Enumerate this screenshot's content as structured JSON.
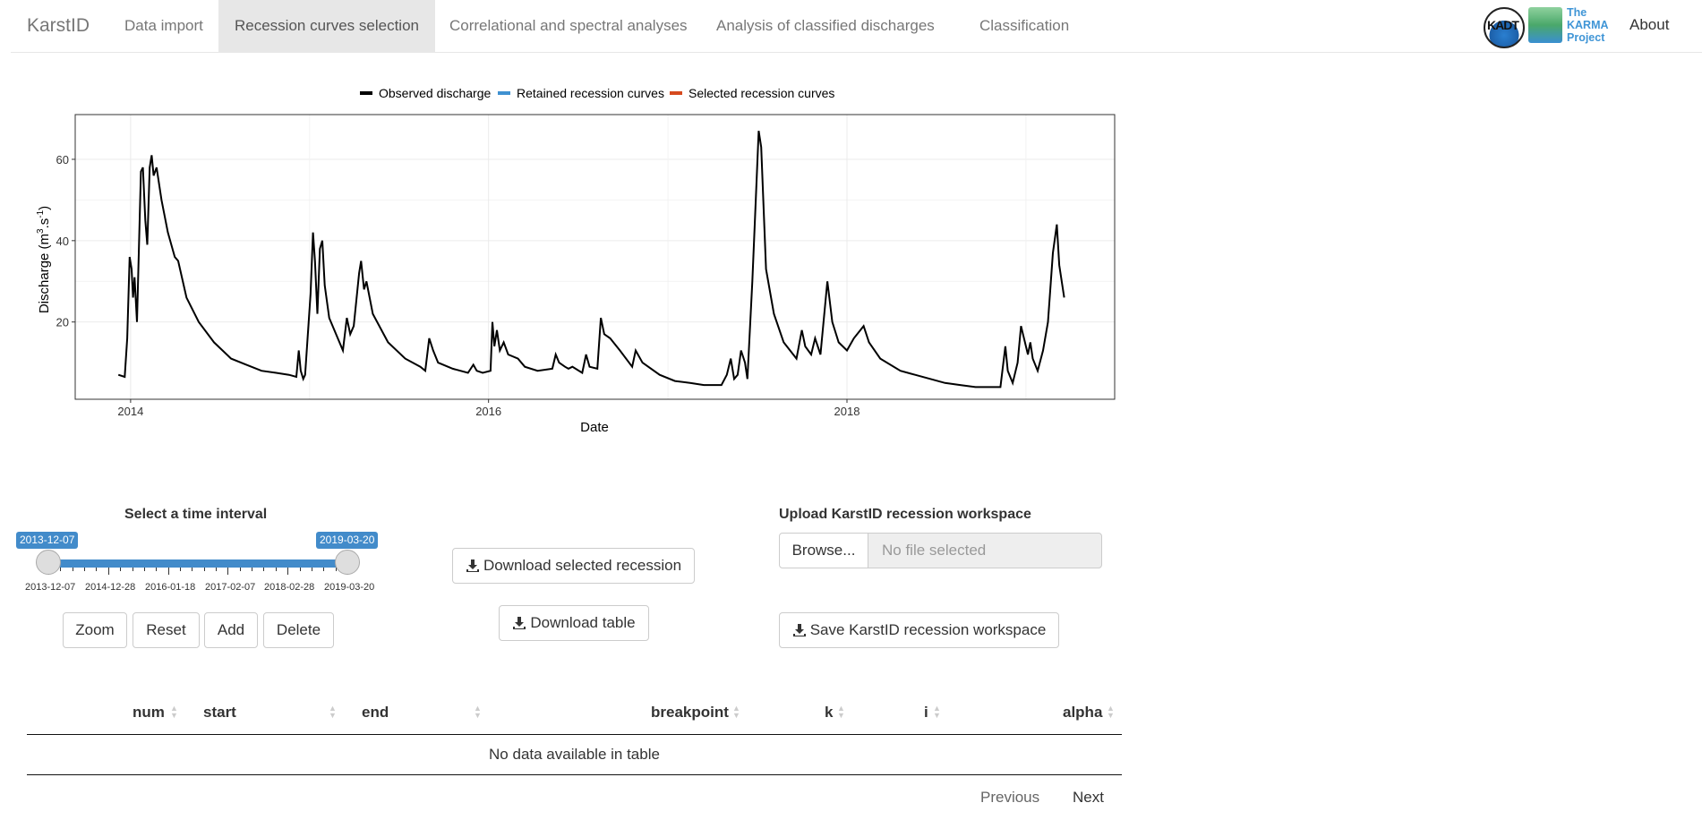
{
  "nav": {
    "brand": "KarstID",
    "items": [
      {
        "label": "Data import"
      },
      {
        "label": "Recession curves selection"
      },
      {
        "label": "Correlational and spectral analyses"
      },
      {
        "label": "Analysis of classified discharges"
      },
      {
        "label": "Classification"
      }
    ],
    "logos": {
      "kadt": "KADT",
      "karma": "The KARMA Project"
    },
    "about": "About"
  },
  "chart_data": {
    "type": "line",
    "title": "",
    "xlabel": "Date",
    "ylabel": "Discharge (m³.s⁻¹)",
    "ylabel_parts": {
      "base": "Discharge (m",
      "sup1": "3",
      "mid": ".s",
      "sup2": "-1",
      "end": ")"
    },
    "xlim": [
      "2013-09-10",
      "2019-07-01"
    ],
    "ylim": [
      1,
      71
    ],
    "x_ticks": [
      "2014",
      "2016",
      "2018"
    ],
    "y_ticks": [
      20,
      40,
      60
    ],
    "grid": true,
    "legend_position": "top",
    "legend": [
      {
        "name": "Observed discharge",
        "color": "#000000"
      },
      {
        "name": "Retained recession curves",
        "color": "#3f91d1"
      },
      {
        "name": "Selected recession curves",
        "color": "#d64a1e"
      }
    ],
    "series": [
      {
        "name": "Observed discharge",
        "color": "#000000",
        "points": [
          [
            "2013-12-07",
            7
          ],
          [
            "2013-12-20",
            6.5
          ],
          [
            "2013-12-25",
            16
          ],
          [
            "2013-12-30",
            36
          ],
          [
            "2014-01-03",
            33
          ],
          [
            "2014-01-06",
            26
          ],
          [
            "2014-01-09",
            31
          ],
          [
            "2014-01-14",
            20
          ],
          [
            "2014-01-22",
            57
          ],
          [
            "2014-01-26",
            58
          ],
          [
            "2014-01-31",
            45
          ],
          [
            "2014-02-04",
            39
          ],
          [
            "2014-02-09",
            58
          ],
          [
            "2014-02-13",
            61
          ],
          [
            "2014-02-17",
            56
          ],
          [
            "2014-02-23",
            58
          ],
          [
            "2014-03-05",
            50
          ],
          [
            "2014-03-18",
            42
          ],
          [
            "2014-04-01",
            36
          ],
          [
            "2014-04-08",
            35
          ],
          [
            "2014-04-25",
            26
          ],
          [
            "2014-05-20",
            20
          ],
          [
            "2014-06-20",
            15
          ],
          [
            "2014-07-25",
            11
          ],
          [
            "2014-08-25",
            9.5
          ],
          [
            "2014-09-25",
            8
          ],
          [
            "2014-10-25",
            7.5
          ],
          [
            "2014-11-20",
            7
          ],
          [
            "2014-12-05",
            6.5
          ],
          [
            "2014-12-10",
            13
          ],
          [
            "2014-12-14",
            8
          ],
          [
            "2014-12-19",
            6
          ],
          [
            "2014-12-23",
            7
          ],
          [
            "2015-01-03",
            27
          ],
          [
            "2015-01-08",
            42
          ],
          [
            "2015-01-12",
            35
          ],
          [
            "2015-01-17",
            22
          ],
          [
            "2015-01-22",
            38
          ],
          [
            "2015-01-27",
            40
          ],
          [
            "2015-02-01",
            29
          ],
          [
            "2015-02-10",
            21
          ],
          [
            "2015-03-10",
            13
          ],
          [
            "2015-03-18",
            21
          ],
          [
            "2015-03-25",
            17
          ],
          [
            "2015-04-01",
            19
          ],
          [
            "2015-04-12",
            32
          ],
          [
            "2015-04-16",
            35
          ],
          [
            "2015-04-22",
            28
          ],
          [
            "2015-04-27",
            30
          ],
          [
            "2015-05-10",
            22
          ],
          [
            "2015-06-10",
            15
          ],
          [
            "2015-07-15",
            11
          ],
          [
            "2015-08-15",
            9
          ],
          [
            "2015-08-25",
            8
          ],
          [
            "2015-09-02",
            16
          ],
          [
            "2015-09-10",
            13
          ],
          [
            "2015-09-20",
            10
          ],
          [
            "2015-10-20",
            8.5
          ],
          [
            "2015-11-20",
            7.5
          ],
          [
            "2015-12-01",
            9.5
          ],
          [
            "2015-12-08",
            8
          ],
          [
            "2015-12-20",
            7.5
          ],
          [
            "2016-01-05",
            8
          ],
          [
            "2016-01-09",
            20
          ],
          [
            "2016-01-13",
            14
          ],
          [
            "2016-01-18",
            18
          ],
          [
            "2016-01-24",
            13
          ],
          [
            "2016-02-01",
            15
          ],
          [
            "2016-02-10",
            12
          ],
          [
            "2016-03-01",
            11
          ],
          [
            "2016-03-15",
            9
          ],
          [
            "2016-04-10",
            8
          ],
          [
            "2016-05-10",
            8.5
          ],
          [
            "2016-05-17",
            12
          ],
          [
            "2016-05-24",
            10
          ],
          [
            "2016-06-05",
            9
          ],
          [
            "2016-06-12",
            8.5
          ],
          [
            "2016-06-20",
            9
          ],
          [
            "2016-07-10",
            7.5
          ],
          [
            "2016-07-18",
            12
          ],
          [
            "2016-07-25",
            9
          ],
          [
            "2016-08-10",
            8.5
          ],
          [
            "2016-08-17",
            21
          ],
          [
            "2016-08-24",
            17
          ],
          [
            "2016-09-05",
            16
          ],
          [
            "2016-09-25",
            13
          ],
          [
            "2016-10-20",
            9
          ],
          [
            "2016-10-27",
            13
          ],
          [
            "2016-11-10",
            10
          ],
          [
            "2016-12-15",
            7
          ],
          [
            "2017-01-15",
            5.5
          ],
          [
            "2017-02-15",
            5
          ],
          [
            "2017-03-15",
            4.5
          ],
          [
            "2017-04-20",
            4.5
          ],
          [
            "2017-05-01",
            7
          ],
          [
            "2017-05-09",
            11
          ],
          [
            "2017-05-16",
            6
          ],
          [
            "2017-05-23",
            7
          ],
          [
            "2017-05-30",
            13
          ],
          [
            "2017-06-07",
            10
          ],
          [
            "2017-06-12",
            6
          ],
          [
            "2017-06-22",
            30
          ],
          [
            "2017-07-05",
            67
          ],
          [
            "2017-07-10",
            63
          ],
          [
            "2017-07-20",
            33
          ],
          [
            "2017-08-05",
            22
          ],
          [
            "2017-08-25",
            15
          ],
          [
            "2017-09-20",
            11
          ],
          [
            "2017-10-01",
            18
          ],
          [
            "2017-10-08",
            14
          ],
          [
            "2017-10-20",
            12
          ],
          [
            "2017-10-28",
            16
          ],
          [
            "2017-11-08",
            12
          ],
          [
            "2017-11-22",
            30
          ],
          [
            "2017-12-02",
            20
          ],
          [
            "2017-12-15",
            15
          ],
          [
            "2018-01-01",
            13
          ],
          [
            "2018-01-15",
            16
          ],
          [
            "2018-02-04",
            19
          ],
          [
            "2018-02-15",
            15
          ],
          [
            "2018-03-10",
            11
          ],
          [
            "2018-04-20",
            8
          ],
          [
            "2018-05-20",
            7
          ],
          [
            "2018-06-20",
            6
          ],
          [
            "2018-07-20",
            5
          ],
          [
            "2018-08-20",
            4.5
          ],
          [
            "2018-09-20",
            4
          ],
          [
            "2018-10-20",
            4
          ],
          [
            "2018-11-10",
            4
          ],
          [
            "2018-11-20",
            14
          ],
          [
            "2018-11-25",
            8
          ],
          [
            "2018-12-05",
            5
          ],
          [
            "2018-12-15",
            10
          ],
          [
            "2018-12-22",
            19
          ],
          [
            "2019-01-05",
            12
          ],
          [
            "2019-01-10",
            15
          ],
          [
            "2019-01-15",
            11
          ],
          [
            "2019-01-25",
            8
          ],
          [
            "2019-02-05",
            13
          ],
          [
            "2019-02-15",
            20
          ],
          [
            "2019-02-25",
            37
          ],
          [
            "2019-03-05",
            44
          ],
          [
            "2019-03-10",
            34
          ],
          [
            "2019-03-20",
            26
          ]
        ]
      }
    ]
  },
  "controls": {
    "interval_title": "Select a time interval",
    "slider": {
      "min_label": "2013-12-07",
      "max_label": "2019-03-20",
      "from_fraction": 0.0,
      "to_fraction": 1.0,
      "tick_labels": [
        "2013-12-07",
        "2014-12-28",
        "2016-01-18",
        "2017-02-07",
        "2018-02-28",
        "2019-03-20"
      ]
    },
    "buttons": {
      "zoom": "Zoom",
      "reset": "Reset",
      "add": "Add",
      "delete": "Delete",
      "download_recession": "Download selected recession",
      "download_table": "Download table",
      "save_workspace": "Save KarstID recession workspace"
    },
    "upload": {
      "title": "Upload KarstID recession workspace",
      "browse": "Browse...",
      "placeholder": "No file selected"
    }
  },
  "table": {
    "columns": [
      "num",
      "start",
      "end",
      "breakpoint",
      "k",
      "i",
      "alpha"
    ],
    "empty_message": "No data available in table",
    "pager": {
      "previous": "Previous",
      "next": "Next"
    }
  }
}
